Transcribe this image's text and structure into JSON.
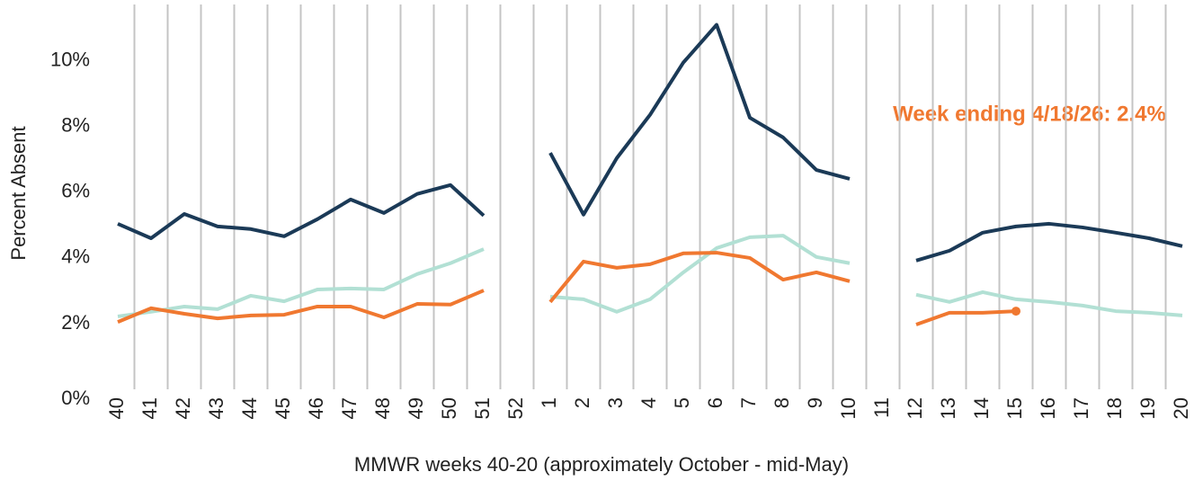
{
  "chart_data": {
    "type": "line",
    "y_label": "Percent Absent",
    "x_label": "MMWR weeks 40-20 (approximately October - mid-May)",
    "annotation": "Week ending 4/18/26: 2.4%",
    "categories": [
      "40",
      "41",
      "42",
      "43",
      "44",
      "45",
      "46",
      "47",
      "48",
      "49",
      "50",
      "51",
      "52",
      "1",
      "2",
      "3",
      "4",
      "5",
      "6",
      "7",
      "8",
      "9",
      "10",
      "11",
      "12",
      "13",
      "14",
      "15",
      "16",
      "17",
      "18",
      "19",
      "20"
    ],
    "series": [
      {
        "color": "#1b3a57",
        "values": [
          5.04,
          4.6,
          5.34,
          4.96,
          4.88,
          4.66,
          5.18,
          5.78,
          5.37,
          5.95,
          6.22,
          5.29,
          null,
          7.2,
          5.32,
          7.04,
          8.36,
          9.95,
          11.1,
          8.27,
          7.67,
          6.68,
          6.41,
          null,
          3.92,
          4.22,
          4.77,
          4.96,
          5.04,
          4.93,
          4.77,
          4.6,
          4.36
        ]
      },
      {
        "color": "#b2e0d4",
        "values": [
          2.22,
          2.36,
          2.52,
          2.44,
          2.85,
          2.68,
          3.04,
          3.07,
          3.04,
          3.51,
          3.84,
          4.27,
          null,
          2.82,
          2.74,
          2.36,
          2.74,
          3.56,
          4.3,
          4.63,
          4.68,
          4.03,
          3.84,
          null,
          2.88,
          2.66,
          2.96,
          2.74,
          2.66,
          2.55,
          2.38,
          2.33,
          2.25
        ]
      },
      {
        "color": "#f07830",
        "values": [
          2.05,
          2.47,
          2.3,
          2.16,
          2.25,
          2.27,
          2.52,
          2.52,
          2.19,
          2.6,
          2.58,
          3.01,
          null,
          2.66,
          3.89,
          3.7,
          3.81,
          4.14,
          4.16,
          4.0,
          3.34,
          3.56,
          3.29,
          null,
          1.97,
          2.33,
          2.33,
          2.38,
          null,
          null,
          null,
          null,
          null
        ]
      }
    ],
    "ylim": [
      0,
      11.5
    ],
    "yticks": [
      {
        "value": 0,
        "label": "0%"
      },
      {
        "value": 2,
        "label": "2%"
      },
      {
        "value": 4,
        "label": "4%"
      },
      {
        "value": 6,
        "label": "6%"
      },
      {
        "value": 8,
        "label": "8%"
      },
      {
        "value": 10,
        "label": "10%"
      }
    ],
    "grid": true
  }
}
